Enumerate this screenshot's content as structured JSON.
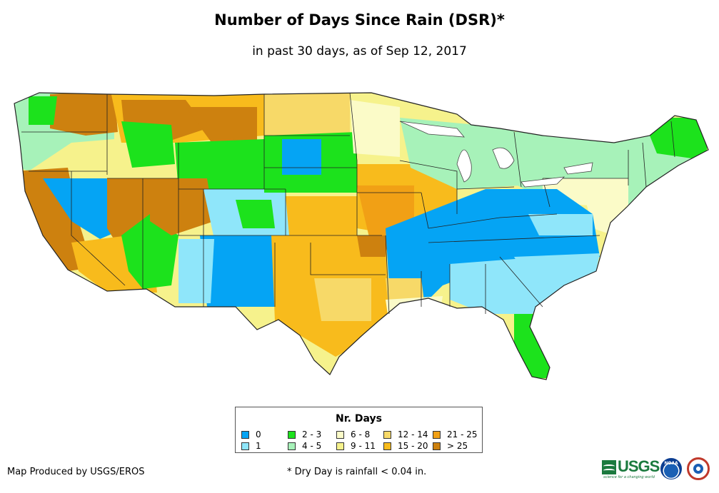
{
  "title": "Number of Days Since Rain (DSR)*",
  "subtitle": "in past 30 days, as of Sep 12, 2017",
  "legend": {
    "title": "Nr. Days",
    "items": [
      {
        "label": "0",
        "color": "#05a4f4"
      },
      {
        "label": "1",
        "color": "#8fe6fa"
      },
      {
        "label": "2 - 3",
        "color": "#1ce21c"
      },
      {
        "label": "4 - 5",
        "color": "#a7f2b9"
      },
      {
        "label": "6 - 8",
        "color": "#fbfbc8"
      },
      {
        "label": "9 - 11",
        "color": "#f6f28c"
      },
      {
        "label": "12 - 14",
        "color": "#f7d968"
      },
      {
        "label": "15 - 20",
        "color": "#f8bb1c"
      },
      {
        "label": "21 - 25",
        "color": "#f1a015"
      },
      {
        "label": "> 25",
        "color": "#cd810f"
      }
    ]
  },
  "credit": "Map Produced by USGS/EROS",
  "note": "* Dry Day is rainfall < 0.04 in.",
  "logos": {
    "usgs": "USGS",
    "usgs_tagline": "science for a changing world",
    "noaa": "NOAA"
  }
}
